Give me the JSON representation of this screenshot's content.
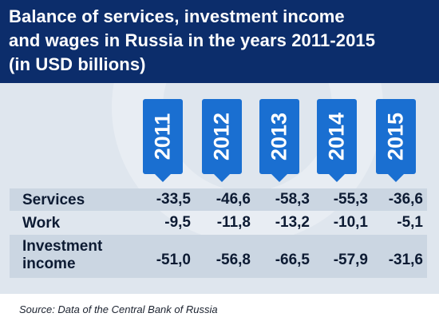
{
  "chart_data": {
    "type": "table",
    "title_lines": [
      "Balance of services, investment income",
      "and wages in Russia in the years 2011-2015",
      "(in USD billions)"
    ],
    "columns": [
      "2011",
      "2012",
      "2013",
      "2014",
      "2015"
    ],
    "rows": [
      {
        "label_lines": [
          "Services"
        ],
        "values": [
          "-33,5",
          "-46,6",
          "-58,3",
          "-55,3",
          "-36,6"
        ]
      },
      {
        "label_lines": [
          "Work"
        ],
        "values": [
          "-9,5",
          "-11,8",
          "-13,2",
          "-10,1",
          "-5,1"
        ]
      },
      {
        "label_lines": [
          "Investment",
          "income"
        ],
        "values": [
          "-51,0",
          "-56,8",
          "-66,5",
          "-57,9",
          "-31,6"
        ]
      }
    ],
    "source": "Source: Data of the Central Bank of Russia"
  },
  "colors": {
    "header": "#0c2d6b",
    "tab": "#1a6fd1",
    "panel": "#dfe6ee",
    "shaded_row": "#cbd6e2"
  }
}
